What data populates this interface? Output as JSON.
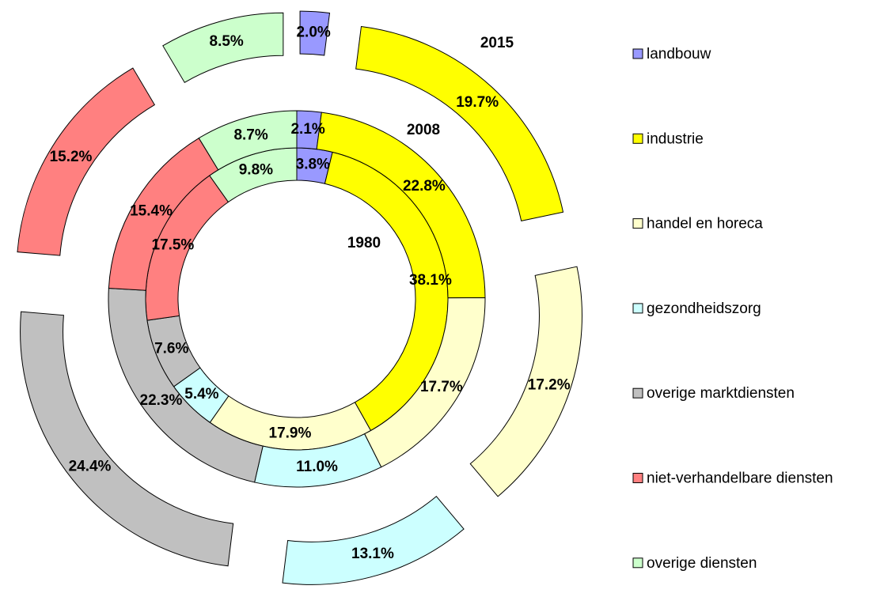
{
  "chart_data": {
    "type": "doughnut",
    "categories": [
      "landbouw",
      "industrie",
      "handel en horeca",
      "gezondheidszorg",
      "overige marktdiensten",
      "niet-verhandelbare diensten",
      "overige diensten"
    ],
    "colors": [
      "#9999ff",
      "#ffff00",
      "#ffffcc",
      "#ccffff",
      "#c0c0c0",
      "#ff8080",
      "#ccffcc"
    ],
    "series": [
      {
        "name": "1980",
        "values": [
          3.8,
          38.1,
          17.9,
          5.4,
          7.6,
          17.5,
          9.8
        ],
        "value_labels": [
          "3.8%",
          "38.1%",
          "17.9%",
          "5.4%",
          "7.6%",
          "17.5%",
          "9.8%"
        ]
      },
      {
        "name": "2008",
        "values": [
          2.1,
          22.8,
          17.7,
          11.0,
          22.3,
          15.4,
          8.7
        ],
        "value_labels": [
          "2.1%",
          "22.8%",
          "17.7%",
          "11.0%",
          "22.3%",
          "15.4%",
          "8.7%"
        ]
      },
      {
        "name": "2015",
        "values": [
          2.0,
          19.7,
          17.2,
          13.1,
          24.4,
          15.2,
          8.5
        ],
        "value_labels": [
          "2.0%",
          "19.7%",
          "17.2%",
          "13.1%",
          "24.4%",
          "15.2%",
          "8.5%"
        ]
      }
    ],
    "legend": "right"
  }
}
